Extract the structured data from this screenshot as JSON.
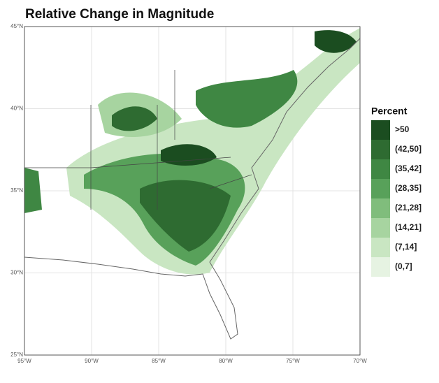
{
  "title": "Relative Change in Magnitude",
  "map": {
    "xlim": [
      -95,
      -70
    ],
    "ylim": [
      25,
      45
    ],
    "xticks": [
      {
        "value": -95,
        "label": "95°W"
      },
      {
        "value": -90,
        "label": "90°W"
      },
      {
        "value": -85,
        "label": "85°W"
      },
      {
        "value": -80,
        "label": "80°W"
      },
      {
        "value": -75,
        "label": "75°W"
      },
      {
        "value": -70,
        "label": "70°W"
      }
    ],
    "yticks": [
      {
        "value": 25,
        "label": "25°N"
      },
      {
        "value": 30,
        "label": "30°N"
      },
      {
        "value": 35,
        "label": "35°N"
      },
      {
        "value": 40,
        "label": "40°N"
      },
      {
        "value": 45,
        "label": "45°N"
      }
    ],
    "grid": true
  },
  "legend": {
    "title": "Percent",
    "items": [
      {
        "label": ">50",
        "color": "#1b4d20"
      },
      {
        "label": "(42,50]",
        "color": "#2e6b31"
      },
      {
        "label": "(35,42]",
        "color": "#3f8743"
      },
      {
        "label": "(28,35]",
        "color": "#58a15a"
      },
      {
        "label": "(21,28]",
        "color": "#80bd7c"
      },
      {
        "label": "(14,21]",
        "color": "#a7d4a0"
      },
      {
        "label": "(7,14]",
        "color": "#c9e6c2"
      },
      {
        "label": "(0,7]",
        "color": "#e6f3e2"
      }
    ]
  }
}
